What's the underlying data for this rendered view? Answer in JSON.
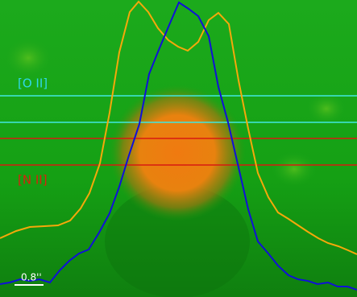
{
  "slits": [
    {
      "label": "[O II]"
    },
    {
      "label": "[N II]"
    }
  ],
  "scale_bar": {
    "label": "0.8''"
  }
}
